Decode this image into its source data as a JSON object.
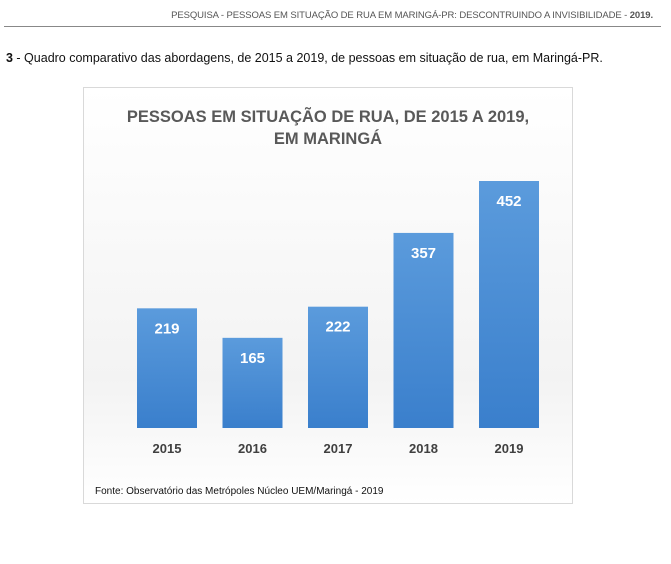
{
  "header": {
    "text": "PESQUISA - PESSOAS EM SITUAÇÃO DE RUA EM MARINGÁ-PR: DESCONTRUINDO A INVISIBILIDADE - ",
    "year": "2019."
  },
  "caption": {
    "number": "3",
    "text": " - Quadro comparativo das abordagens, de 2015 a 2019, de pessoas em situação de rua, em Maringá-PR."
  },
  "chart_data": {
    "type": "bar",
    "title_line1": "PESSOAS EM SITUAÇÃO DE RUA, DE 2015 A 2019,",
    "title_line2": "EM MARINGÁ",
    "categories": [
      "2015",
      "2016",
      "2017",
      "2018",
      "2019"
    ],
    "values": [
      219,
      165,
      222,
      357,
      452
    ],
    "ylim": [
      0,
      452
    ],
    "grid": false,
    "legend": "none",
    "bar_color": "#4a8fd6",
    "source": "Fonte: Observatório das Metrópoles Núcleo UEM/Maringá - 2019"
  }
}
